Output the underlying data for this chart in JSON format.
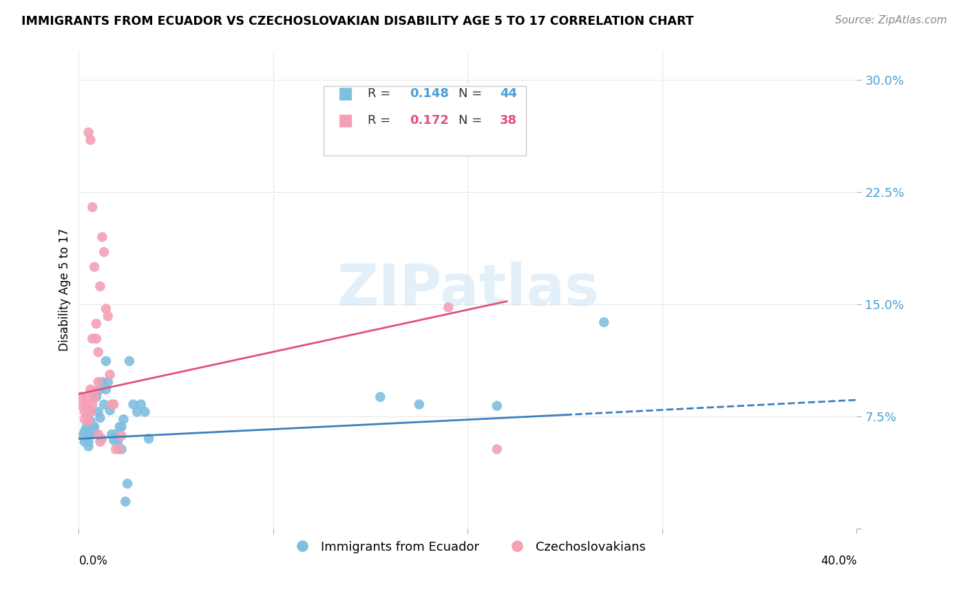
{
  "title": "IMMIGRANTS FROM ECUADOR VS CZECHOSLOVAKIAN DISABILITY AGE 5 TO 17 CORRELATION CHART",
  "source": "Source: ZipAtlas.com",
  "ylabel": "Disability Age 5 to 17",
  "yticks": [
    0.0,
    0.075,
    0.15,
    0.225,
    0.3
  ],
  "ytick_labels": [
    "",
    "7.5%",
    "15.0%",
    "22.5%",
    "30.0%"
  ],
  "xticks": [
    0.0,
    0.1,
    0.2,
    0.3,
    0.4
  ],
  "xtick_labels": [
    "0.0%",
    "",
    "",
    "",
    "40.0%"
  ],
  "xlim": [
    0.0,
    0.4
  ],
  "ylim": [
    0.0,
    0.32
  ],
  "color_blue": "#7fbfdf",
  "color_pink": "#f4a0b5",
  "color_blue_line": "#3a7fbf",
  "color_pink_line": "#e05080",
  "color_ytick": "#4a9fd4",
  "watermark_text": "ZIPatlas",
  "legend1_label": "R = ",
  "legend1_r": "0.148",
  "legend1_n_label": "N = ",
  "legend1_n": "44",
  "legend2_label": "R = ",
  "legend2_r": "0.172",
  "legend2_n_label": "N = ",
  "legend2_n": "38",
  "bottom_legend1": "Immigrants from Ecuador",
  "bottom_legend2": "Czechoslovakians",
  "ecuador_x": [
    0.002,
    0.003,
    0.003,
    0.004,
    0.004,
    0.005,
    0.005,
    0.005,
    0.006,
    0.006,
    0.007,
    0.007,
    0.008,
    0.008,
    0.009,
    0.01,
    0.01,
    0.011,
    0.012,
    0.013,
    0.014,
    0.014,
    0.015,
    0.016,
    0.017,
    0.018,
    0.019,
    0.02,
    0.021,
    0.022,
    0.022,
    0.023,
    0.024,
    0.025,
    0.026,
    0.028,
    0.03,
    0.032,
    0.034,
    0.036,
    0.155,
    0.175,
    0.215,
    0.27
  ],
  "ecuador_y": [
    0.062,
    0.058,
    0.065,
    0.068,
    0.06,
    0.063,
    0.058,
    0.055,
    0.072,
    0.078,
    0.064,
    0.069,
    0.068,
    0.065,
    0.088,
    0.078,
    0.092,
    0.074,
    0.098,
    0.083,
    0.093,
    0.112,
    0.098,
    0.079,
    0.063,
    0.059,
    0.063,
    0.058,
    0.068,
    0.068,
    0.053,
    0.073,
    0.018,
    0.03,
    0.112,
    0.083,
    0.078,
    0.083,
    0.078,
    0.06,
    0.088,
    0.083,
    0.082,
    0.138
  ],
  "czech_x": [
    0.001,
    0.002,
    0.003,
    0.003,
    0.004,
    0.004,
    0.005,
    0.005,
    0.006,
    0.006,
    0.007,
    0.007,
    0.008,
    0.008,
    0.009,
    0.01,
    0.01,
    0.011,
    0.012,
    0.013,
    0.014,
    0.015,
    0.016,
    0.017,
    0.018,
    0.019,
    0.021,
    0.022,
    0.005,
    0.006,
    0.007,
    0.008,
    0.009,
    0.01,
    0.011,
    0.012,
    0.19,
    0.215
  ],
  "czech_y": [
    0.088,
    0.082,
    0.078,
    0.073,
    0.088,
    0.083,
    0.078,
    0.072,
    0.093,
    0.078,
    0.083,
    0.127,
    0.088,
    0.092,
    0.127,
    0.118,
    0.098,
    0.162,
    0.195,
    0.185,
    0.147,
    0.142,
    0.103,
    0.083,
    0.083,
    0.053,
    0.053,
    0.062,
    0.265,
    0.26,
    0.215,
    0.175,
    0.137,
    0.063,
    0.058,
    0.06,
    0.148,
    0.053
  ],
  "ec_trendline_x0": 0.0,
  "ec_trendline_y0": 0.06,
  "ec_trendline_x1": 0.25,
  "ec_trendline_y1": 0.076,
  "ec_trendline_dash_x0": 0.25,
  "ec_trendline_dash_y0": 0.076,
  "ec_trendline_dash_x1": 0.4,
  "ec_trendline_dash_y1": 0.086,
  "cz_trendline_x0": 0.0,
  "cz_trendline_y0": 0.09,
  "cz_trendline_x1": 0.22,
  "cz_trendline_y1": 0.152
}
